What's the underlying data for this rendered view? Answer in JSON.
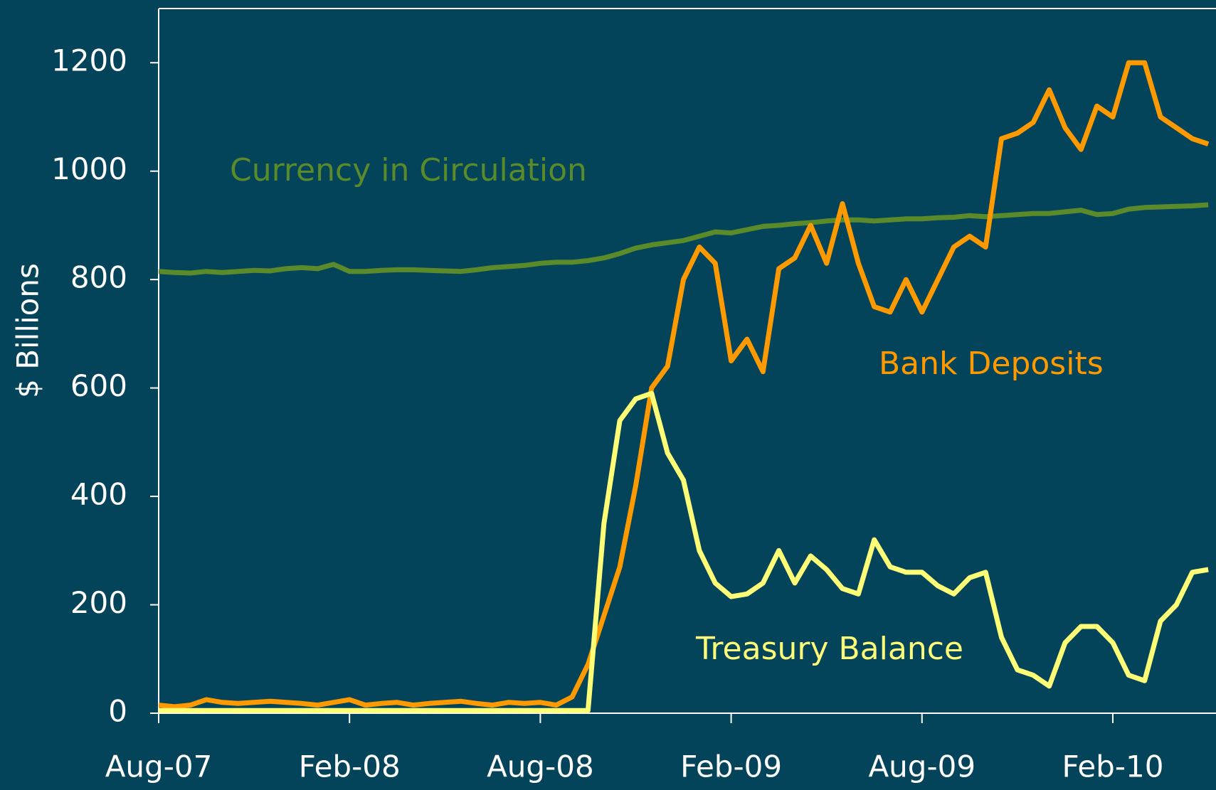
{
  "chart_data": {
    "type": "line",
    "y_label": "$ Billions",
    "x": [
      0,
      0.5,
      1,
      1.5,
      2,
      2.5,
      3,
      3.5,
      4,
      4.5,
      5,
      5.5,
      6,
      6.5,
      7,
      7.5,
      8,
      8.5,
      9,
      9.5,
      10,
      10.5,
      11,
      11.5,
      12,
      12.5,
      13,
      13.5,
      14,
      14.5,
      15,
      15.5,
      16,
      16.5,
      17,
      17.5,
      18,
      18.5,
      19,
      19.5,
      20,
      20.5,
      21,
      21.5,
      22,
      22.5,
      23,
      23.5,
      24,
      24.5,
      25,
      25.5,
      26,
      26.5,
      27,
      27.5,
      28,
      28.5,
      29,
      29.5,
      30,
      30.5,
      31,
      31.5,
      32,
      32.5,
      33
    ],
    "xlim": [
      0,
      33.2
    ],
    "xticks": [
      {
        "value": 0,
        "label": "Aug-07"
      },
      {
        "value": 6,
        "label": "Feb-08"
      },
      {
        "value": 12,
        "label": "Aug-08"
      },
      {
        "value": 18,
        "label": "Feb-09"
      },
      {
        "value": 24,
        "label": "Aug-09"
      },
      {
        "value": 30,
        "label": "Feb-10"
      }
    ],
    "ylim": [
      0,
      1300
    ],
    "yticks": [
      0,
      200,
      400,
      600,
      800,
      1000,
      1200
    ],
    "series": [
      {
        "name": "Currency in Circulation",
        "color": "#5a8a2a",
        "values": [
          815,
          813,
          812,
          815,
          813,
          815,
          817,
          816,
          820,
          822,
          820,
          828,
          815,
          815,
          817,
          818,
          818,
          817,
          816,
          815,
          818,
          822,
          824,
          826,
          830,
          832,
          832,
          835,
          840,
          848,
          858,
          864,
          868,
          872,
          880,
          888,
          886,
          892,
          898,
          900,
          903,
          905,
          908,
          910,
          910,
          908,
          910,
          912,
          912,
          914,
          915,
          918,
          916,
          918,
          920,
          922,
          922,
          925,
          928,
          920,
          922,
          930,
          933,
          934,
          935,
          936,
          938
        ]
      },
      {
        "name": "Bank Deposits",
        "color": "#ff9900",
        "values": [
          15,
          12,
          15,
          25,
          20,
          18,
          20,
          22,
          20,
          18,
          15,
          20,
          25,
          15,
          18,
          20,
          15,
          18,
          20,
          22,
          18,
          15,
          20,
          18,
          20,
          15,
          30,
          90,
          180,
          270,
          420,
          600,
          640,
          800,
          860,
          830,
          650,
          690,
          630,
          820,
          840,
          900,
          830,
          940,
          830,
          750,
          740,
          800,
          740,
          800,
          860,
          880,
          860,
          1060,
          1070,
          1090,
          1150,
          1080,
          1040,
          1120,
          1100,
          1200,
          1200,
          1100,
          1080,
          1060,
          1050
        ]
      },
      {
        "name": "Treasury Balance",
        "color": "#ffff77",
        "values": [
          5,
          5,
          5,
          5,
          5,
          5,
          5,
          5,
          5,
          5,
          5,
          5,
          5,
          5,
          5,
          5,
          5,
          5,
          5,
          5,
          5,
          5,
          5,
          5,
          5,
          5,
          5,
          5,
          350,
          540,
          580,
          590,
          480,
          430,
          300,
          240,
          215,
          220,
          240,
          300,
          240,
          290,
          265,
          230,
          220,
          320,
          270,
          260,
          260,
          235,
          220,
          250,
          260,
          140,
          80,
          70,
          50,
          130,
          160,
          160,
          130,
          70,
          60,
          170,
          200,
          260,
          265
        ]
      }
    ]
  }
}
